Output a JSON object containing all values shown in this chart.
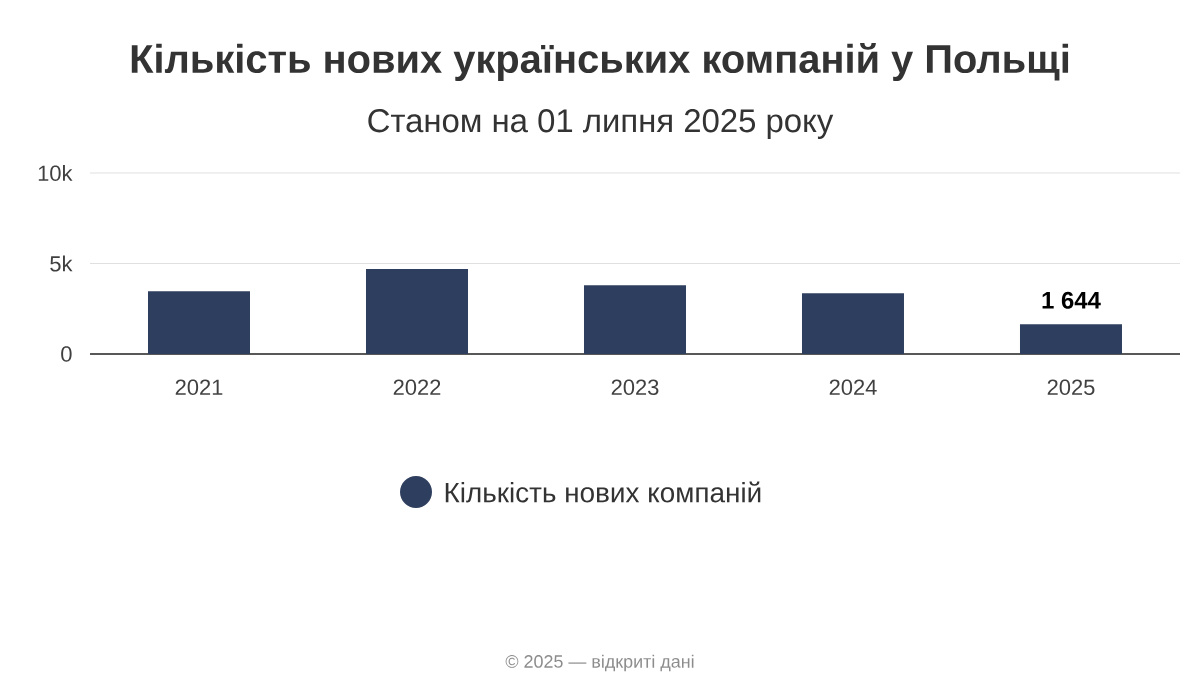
{
  "chart_data": {
    "type": "bar",
    "title": "Кількість нових українських компаній у Польщі",
    "subtitle": "Станом на 01 липня 2025 року",
    "categories": [
      "2021",
      "2022",
      "2023",
      "2024",
      "2025"
    ],
    "series": [
      {
        "name": "Кількість нових компаній",
        "color": "#2e3e5e",
        "values": [
          3460,
          4690,
          3800,
          3350,
          1644
        ],
        "value_labels": [
          null,
          null,
          null,
          null,
          "1 644"
        ]
      }
    ],
    "ylim": [
      0,
      10000
    ],
    "yticks": [
      0,
      {
        "value": 5000,
        "label": "5k"
      },
      {
        "value": 10000,
        "label": "10k"
      }
    ],
    "grid": "y",
    "legend": "bottom",
    "annotations": [
      "© 2025 — відкриті дані"
    ]
  }
}
